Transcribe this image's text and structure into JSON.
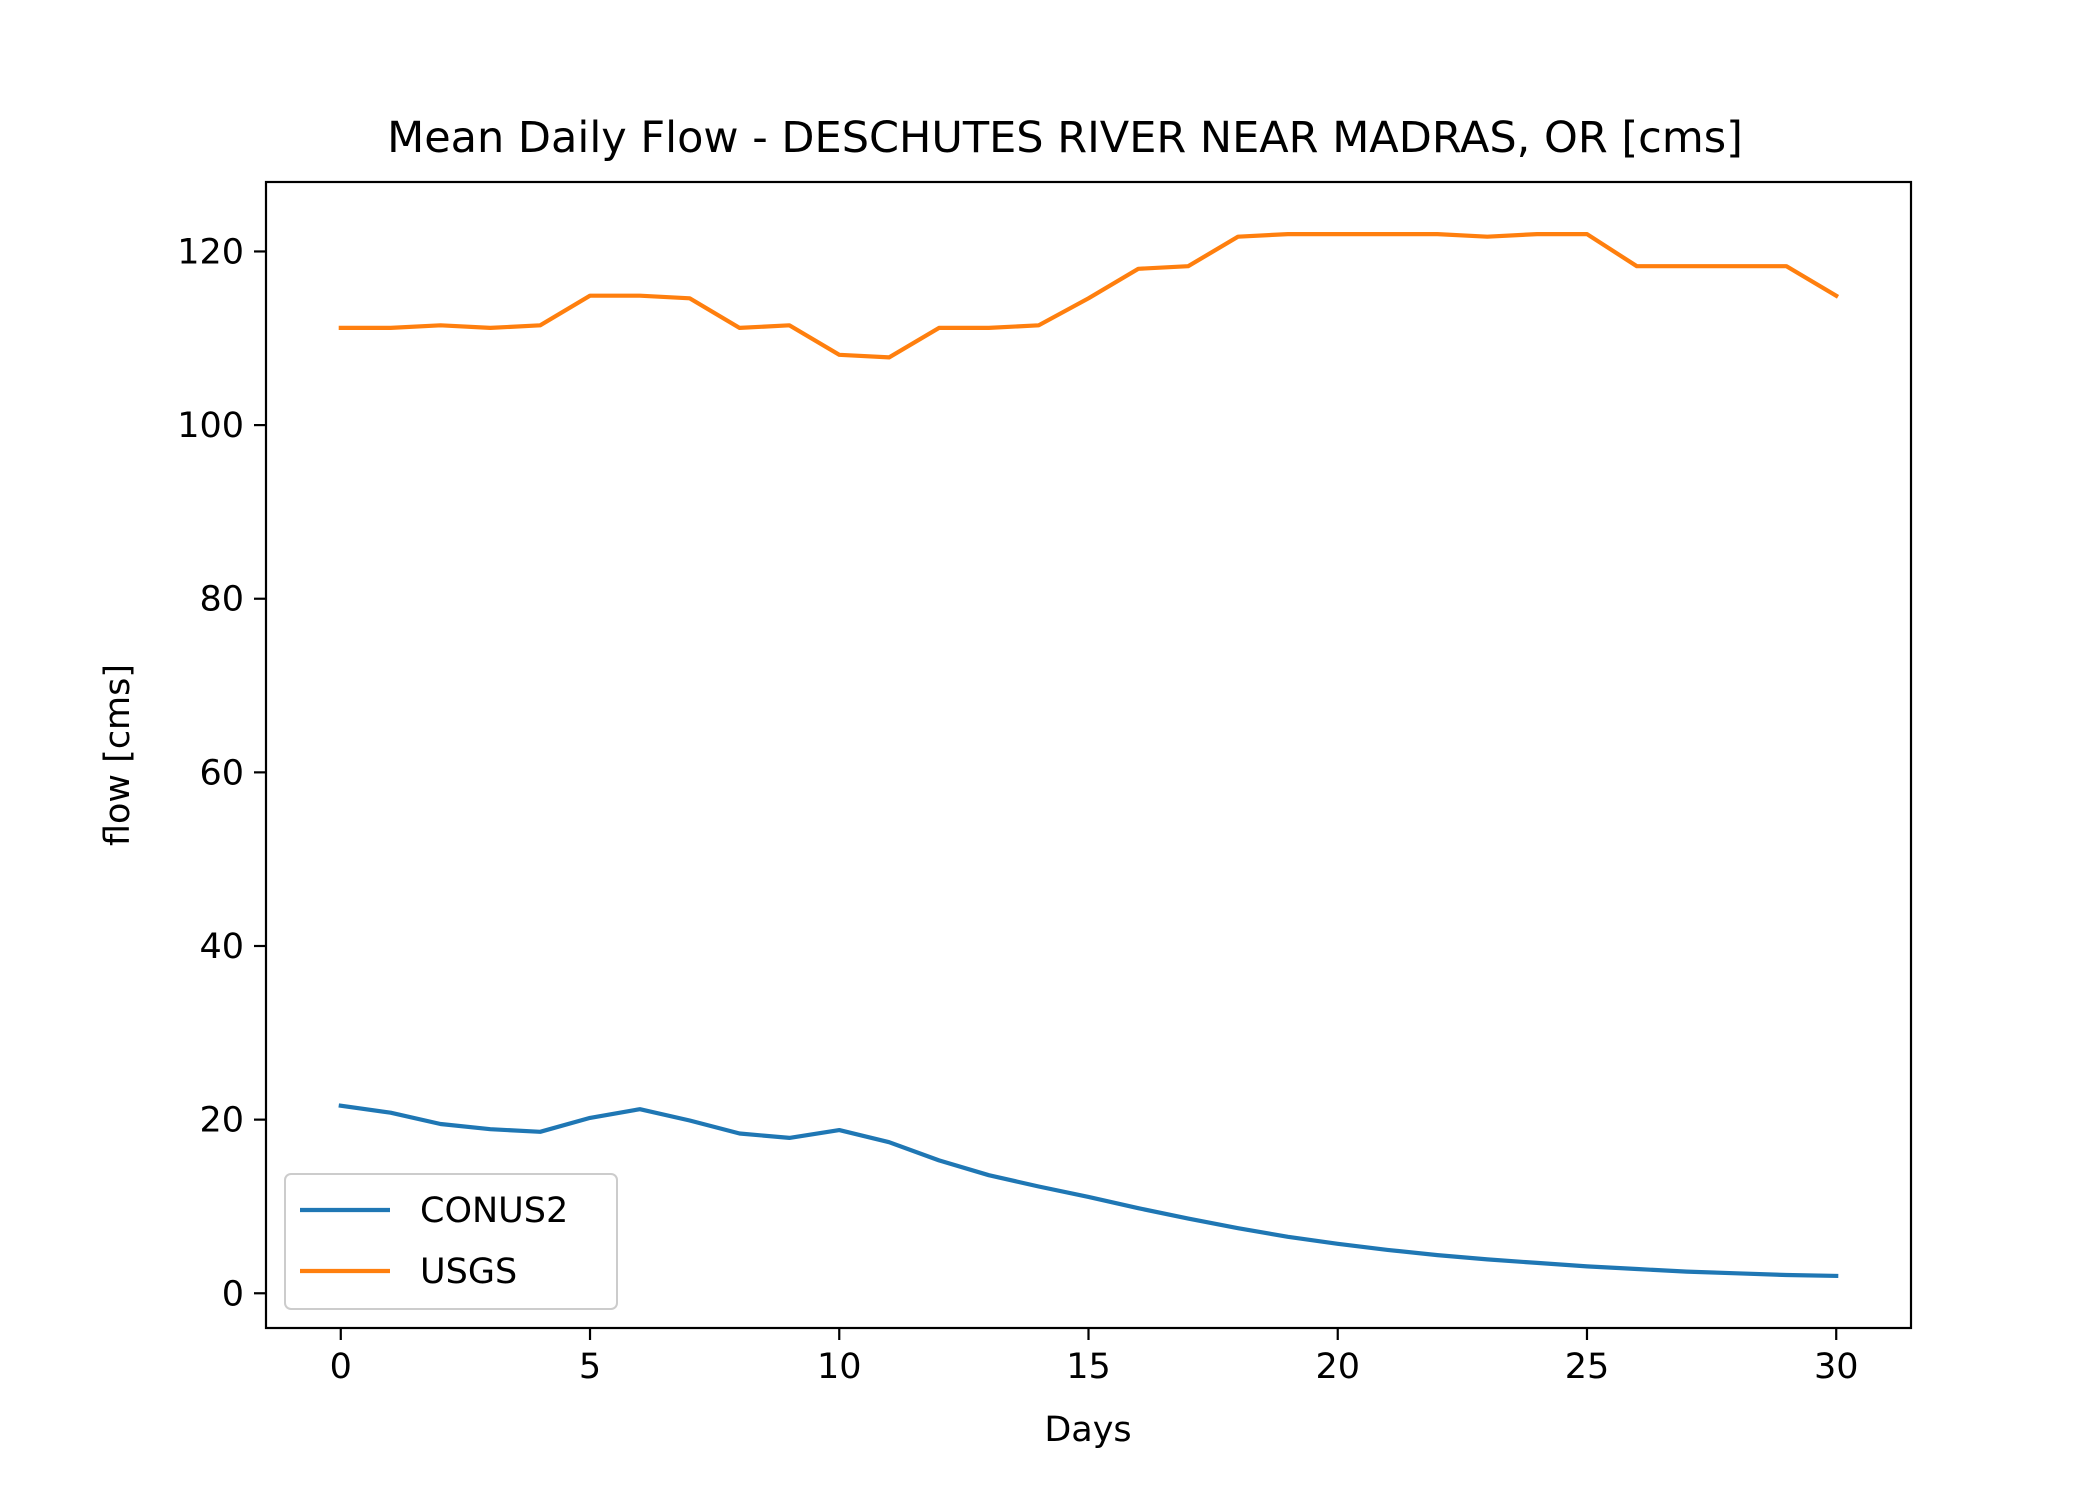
{
  "chart_data": {
    "type": "line",
    "title": "Mean Daily Flow - DESCHUTES RIVER NEAR MADRAS, OR [cms]",
    "xlabel": "Days",
    "ylabel": "flow [cms]",
    "xlim": [
      -1.5,
      31.5
    ],
    "ylim": [
      -4,
      128
    ],
    "xticks": [
      0,
      5,
      10,
      15,
      20,
      25,
      30
    ],
    "yticks": [
      0,
      20,
      40,
      60,
      80,
      100,
      120
    ],
    "x": [
      0,
      1,
      2,
      3,
      4,
      5,
      6,
      7,
      8,
      9,
      10,
      11,
      12,
      13,
      14,
      15,
      16,
      17,
      18,
      19,
      20,
      21,
      22,
      23,
      24,
      25,
      26,
      27,
      28,
      29,
      30
    ],
    "series": [
      {
        "name": "CONUS2",
        "color": "#1f77b4",
        "values": [
          21.6,
          20.8,
          19.5,
          18.9,
          18.6,
          20.2,
          21.2,
          19.9,
          18.4,
          17.9,
          18.8,
          17.4,
          15.3,
          13.6,
          12.3,
          11.1,
          9.8,
          8.6,
          7.5,
          6.5,
          5.7,
          5.0,
          4.4,
          3.9,
          3.5,
          3.1,
          2.8,
          2.5,
          2.3,
          2.1,
          2.0
        ]
      },
      {
        "name": "USGS",
        "color": "#ff7f0e",
        "values": [
          111.2,
          111.2,
          111.5,
          111.2,
          111.5,
          114.9,
          114.9,
          114.6,
          111.2,
          111.5,
          108.1,
          107.8,
          111.2,
          111.2,
          111.5,
          114.6,
          118.0,
          118.3,
          121.7,
          122.0,
          122.0,
          122.0,
          122.0,
          121.7,
          122.0,
          122.0,
          118.3,
          118.3,
          118.3,
          118.3,
          114.9
        ]
      }
    ],
    "legend": {
      "position": "lower-left"
    },
    "grid": false
  }
}
